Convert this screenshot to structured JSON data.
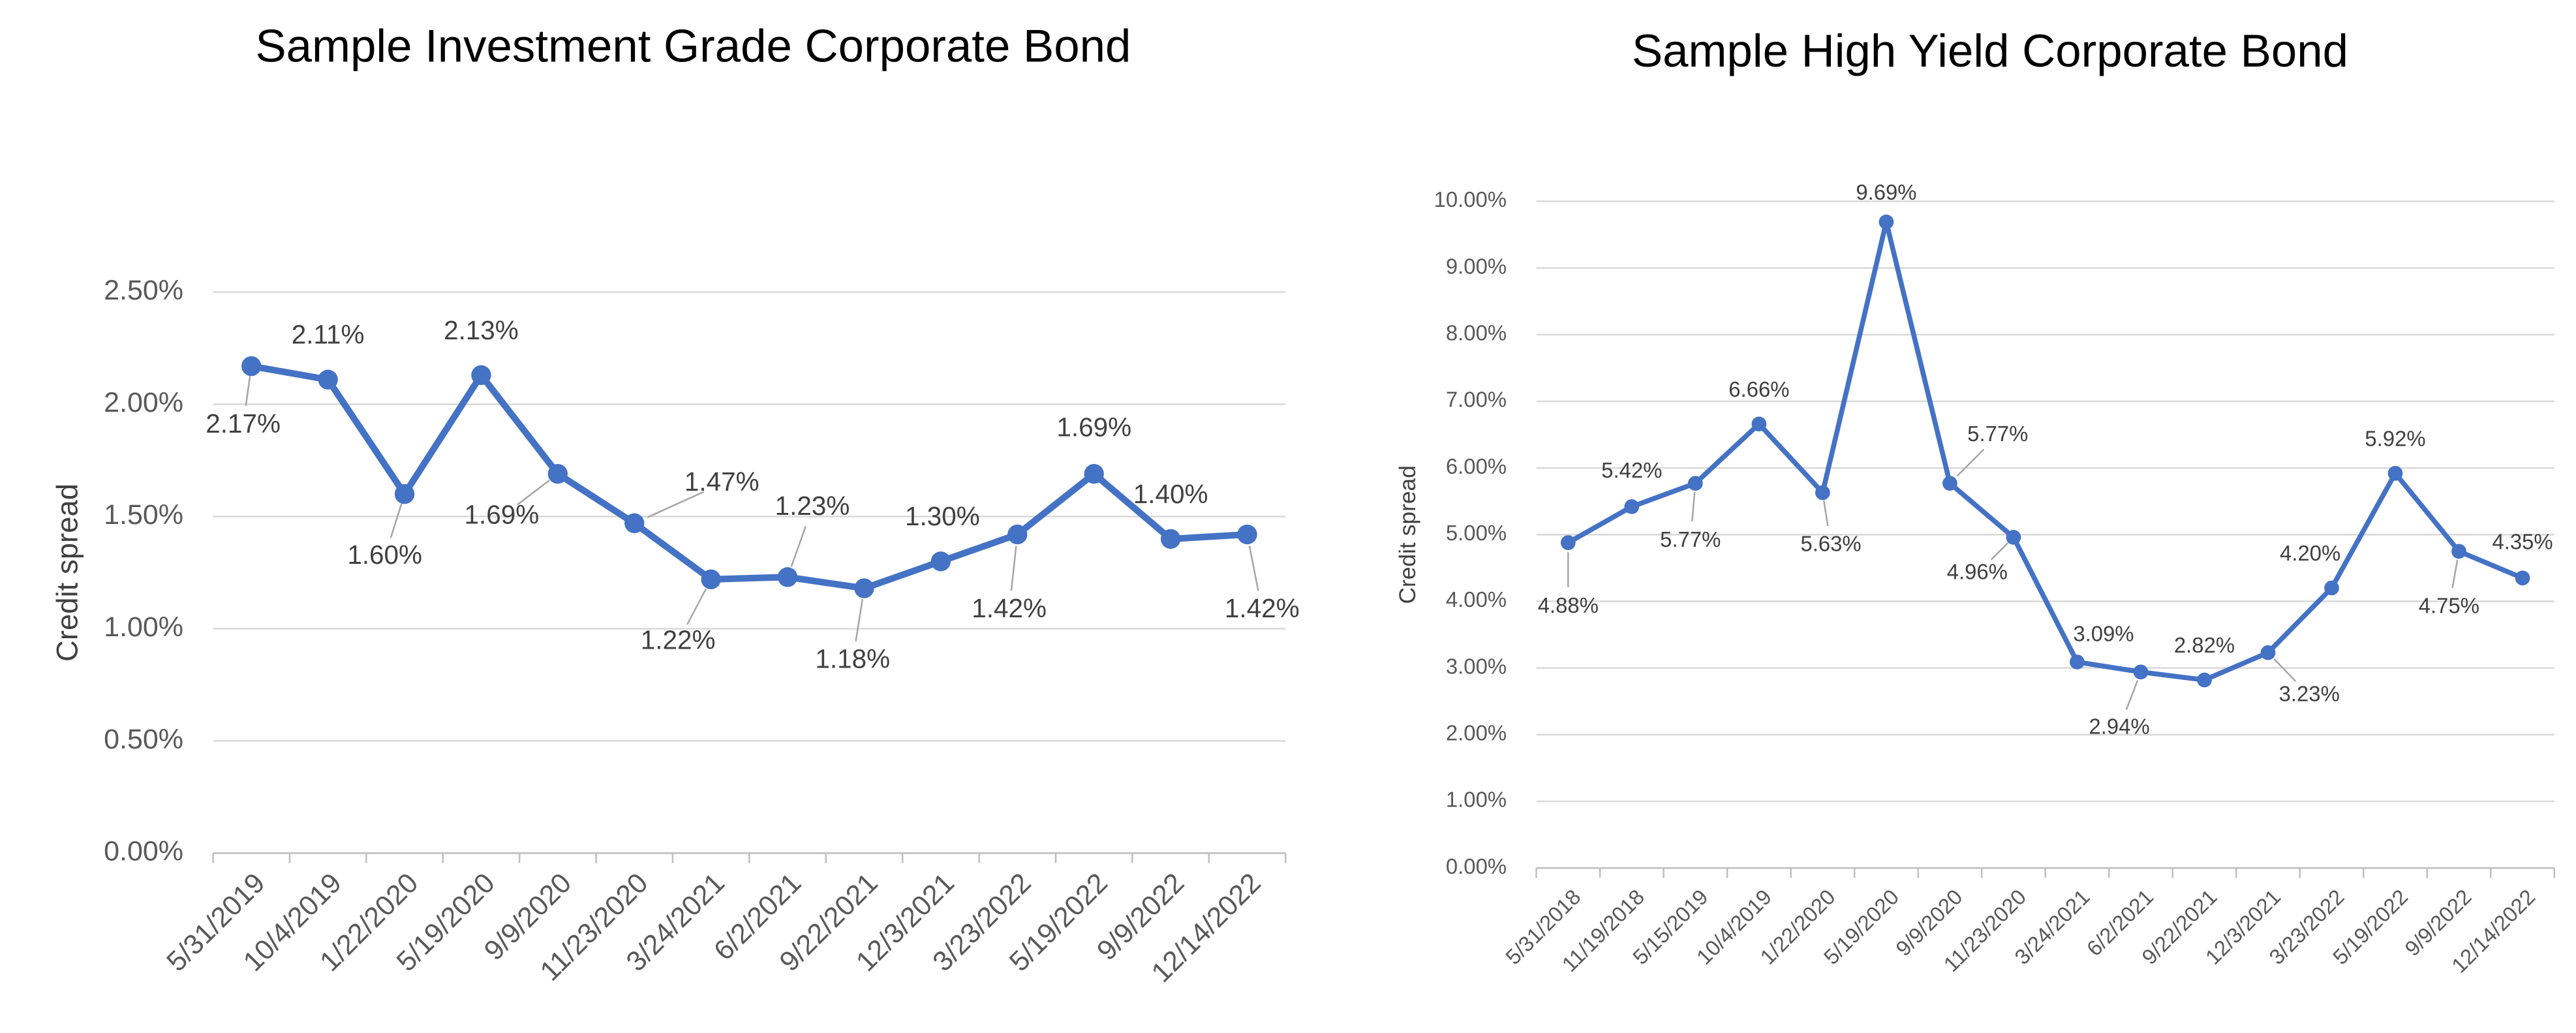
{
  "chart_data": [
    {
      "type": "line",
      "title": "Sample Investment Grade Corporate Bond",
      "y_label": "Credit spread",
      "color": "#4472c4",
      "grid": true,
      "categories": [
        "5/31/2019",
        "10/4/2019",
        "1/22/2020",
        "5/19/2020",
        "9/9/2020",
        "11/23/2020",
        "3/24/2021",
        "6/2/2021",
        "9/22/2021",
        "12/3/2021",
        "3/23/2022",
        "5/19/2022",
        "9/9/2022",
        "12/14/2022"
      ],
      "values": [
        2.17,
        2.11,
        1.6,
        2.13,
        1.69,
        1.47,
        1.22,
        1.23,
        1.18,
        1.3,
        1.42,
        1.69,
        1.4,
        1.42
      ],
      "value_labels": [
        "2.17%",
        "2.11%",
        "1.60%",
        "2.13%",
        "1.69%",
        "1.47%",
        "1.22%",
        "1.23%",
        "1.18%",
        "1.30%",
        "1.42%",
        "1.69%",
        "1.40%",
        "1.42%"
      ],
      "ylim": [
        0,
        2.5
      ],
      "yticks": [
        {
          "value": 0,
          "label": "0.00%"
        },
        {
          "value": 0.5,
          "label": "0.50%"
        },
        {
          "value": 1,
          "label": "1.00%"
        },
        {
          "value": 1.5,
          "label": "1.50%"
        },
        {
          "value": 2,
          "label": "2.00%"
        },
        {
          "value": 2.5,
          "label": "2.50%"
        }
      ]
    },
    {
      "type": "line",
      "title": "Sample High Yield Corporate Bond",
      "y_label": "Credit spread",
      "color": "#4472c4",
      "grid": true,
      "categories": [
        "5/31/2018",
        "11/19/2018",
        "5/15/2019",
        "10/4/2019",
        "1/22/2020",
        "5/19/2020",
        "9/9/2020",
        "11/23/2020",
        "3/24/2021",
        "6/2/2021",
        "9/22/2021",
        "12/3/2021",
        "3/23/2022",
        "5/19/2022",
        "9/9/2022",
        "12/14/2022"
      ],
      "values": [
        4.88,
        5.42,
        5.77,
        6.66,
        5.63,
        9.69,
        5.77,
        4.96,
        3.09,
        2.94,
        2.82,
        3.23,
        4.2,
        5.92,
        4.75,
        4.35
      ],
      "value_labels": [
        "4.88%",
        "5.42%",
        "5.77%",
        "6.66%",
        "5.63%",
        "9.69%",
        "5.77%",
        "4.96%",
        "3.09%",
        "2.94%",
        "2.82%",
        "3.23%",
        "4.20%",
        "5.92%",
        "4.75%",
        "4.35%"
      ],
      "ylim": [
        0,
        10
      ],
      "yticks": [
        {
          "value": 0,
          "label": "0.00%"
        },
        {
          "value": 1,
          "label": "1.00%"
        },
        {
          "value": 2,
          "label": "2.00%"
        },
        {
          "value": 3,
          "label": "3.00%"
        },
        {
          "value": 4,
          "label": "4.00%"
        },
        {
          "value": 5,
          "label": "5.00%"
        },
        {
          "value": 6,
          "label": "6.00%"
        },
        {
          "value": 7,
          "label": "7.00%"
        },
        {
          "value": 8,
          "label": "8.00%"
        },
        {
          "value": 9,
          "label": "9.00%"
        },
        {
          "value": 10,
          "label": "10.00%"
        }
      ]
    }
  ]
}
